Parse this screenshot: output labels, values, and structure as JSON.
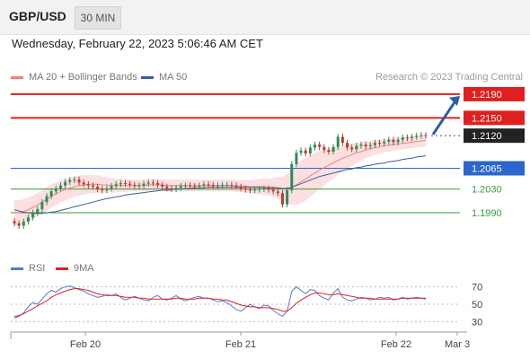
{
  "header": {
    "symbol": "GBP/USD",
    "timeframe": "30 MIN"
  },
  "datetime": "Wednesday, February 22, 2023 5:06:46 AM CET",
  "legend_main": [
    {
      "label": "MA 20 + Bollinger Bands",
      "color": "#f08080"
    },
    {
      "label": "MA 50",
      "color": "#3c5c9c"
    }
  ],
  "credit": "Research © 2023 Trading Central",
  "legend_rsi": [
    {
      "label": "RSI",
      "color": "#5577dd"
    },
    {
      "label": "9MA",
      "color": "#dd2222"
    }
  ],
  "chart_data": {
    "type": "candlestick",
    "price_ylim": [
      1.1925,
      1.2205
    ],
    "levels": [
      {
        "value": 1.219,
        "label": "1.2190",
        "role": "resistance-2",
        "color": "#e02020"
      },
      {
        "value": 1.215,
        "label": "1.2150",
        "role": "resistance-1",
        "color": "#e02020"
      },
      {
        "value": 1.212,
        "label": "1.2120",
        "role": "last-price",
        "color": "#222222"
      },
      {
        "value": 1.2065,
        "label": "1.2065",
        "role": "pivot",
        "color": "#2a66cc"
      },
      {
        "value": 1.203,
        "label": "1.2030",
        "role": "support-1",
        "color": "#3a9a3a"
      },
      {
        "value": 1.199,
        "label": "1.1990",
        "role": "support-2",
        "color": "#3a9a3a"
      }
    ],
    "close_series": [
      1.1972,
      1.1968,
      1.1975,
      1.1982,
      1.199,
      1.1996,
      1.2008,
      1.2018,
      1.2026,
      1.2031,
      1.2036,
      1.2042,
      1.2045,
      1.2046,
      1.2041,
      1.2038,
      1.2036,
      1.2034,
      1.203,
      1.2028,
      1.2031,
      1.2035,
      1.2038,
      1.204,
      1.2039,
      1.2037,
      1.2035,
      1.2036,
      1.2039,
      1.2041,
      1.204,
      1.2037,
      1.2034,
      1.2031,
      1.203,
      1.2032,
      1.2035,
      1.2036,
      1.2035,
      1.2034,
      1.2036,
      1.2038,
      1.2037,
      1.2035,
      1.2036,
      1.2037,
      1.2037,
      1.2036,
      1.2034,
      1.2031,
      1.2029,
      1.2028,
      1.2029,
      1.203,
      1.2031,
      1.2029,
      1.2026,
      1.2023,
      1.2004,
      1.2028,
      1.2072,
      1.2091,
      1.2095,
      1.209,
      1.21,
      1.2105,
      1.2101,
      1.2096,
      1.2093,
      1.2101,
      1.2118,
      1.2108,
      1.21,
      1.2097,
      1.2103,
      1.2105,
      1.2102,
      1.2104,
      1.2108,
      1.2107,
      1.211,
      1.2113,
      1.2109,
      1.2113,
      1.2117,
      1.2116,
      1.2118,
      1.212,
      1.2121,
      1.212
    ],
    "ma20_series": [
      1.199,
      1.199,
      1.1992,
      1.1995,
      1.1999,
      1.2003,
      1.2008,
      1.2013,
      1.2018,
      1.2022,
      1.2026,
      1.2029,
      1.2032,
      1.2034,
      1.2036,
      1.2037,
      1.2038,
      1.2038,
      1.2038,
      1.2037,
      1.2037,
      1.2036,
      1.2036,
      1.2036,
      1.2036,
      1.2036,
      1.2036,
      1.2036,
      1.2036,
      1.2037,
      1.2037,
      1.2037,
      1.2037,
      1.2036,
      1.2036,
      1.2036,
      1.2036,
      1.2036,
      1.2036,
      1.2036,
      1.2036,
      1.2036,
      1.2036,
      1.2036,
      1.2036,
      1.2036,
      1.2036,
      1.2036,
      1.2035,
      1.2035,
      1.2035,
      1.2034,
      1.2034,
      1.2034,
      1.2034,
      1.2033,
      1.2033,
      1.2032,
      1.2031,
      1.2031,
      1.2033,
      1.2037,
      1.2042,
      1.2047,
      1.2052,
      1.2057,
      1.2062,
      1.2066,
      1.207,
      1.2074,
      1.2078,
      1.2082,
      1.2085,
      1.2088,
      1.2091,
      1.2093,
      1.2096,
      1.2098,
      1.21,
      1.2101,
      1.2103,
      1.2104,
      1.2105,
      1.2106,
      1.2107,
      1.2108,
      1.2109,
      1.211,
      1.2111,
      1.2112
    ],
    "ma50_series": [
      1.1995,
      1.1993,
      1.1991,
      1.199,
      1.1989,
      1.1989,
      1.1989,
      1.199,
      1.1991,
      1.1992,
      1.1994,
      1.1996,
      1.1998,
      1.2,
      1.2002,
      1.2004,
      1.2006,
      1.2008,
      1.201,
      1.2012,
      1.2014,
      1.2015,
      1.2017,
      1.2018,
      1.202,
      1.2021,
      1.2022,
      1.2023,
      1.2024,
      1.2025,
      1.2026,
      1.2027,
      1.2028,
      1.2028,
      1.2029,
      1.203,
      1.203,
      1.2031,
      1.2031,
      1.2032,
      1.2032,
      1.2032,
      1.2033,
      1.2033,
      1.2033,
      1.2033,
      1.2033,
      1.2033,
      1.2033,
      1.2033,
      1.2033,
      1.2033,
      1.2033,
      1.2033,
      1.2032,
      1.2032,
      1.2032,
      1.2032,
      1.2031,
      1.2031,
      1.2033,
      1.2036,
      1.2039,
      1.2042,
      1.2045,
      1.2048,
      1.2051,
      1.2053,
      1.2055,
      1.2057,
      1.2059,
      1.2061,
      1.2063,
      1.2064,
      1.2066,
      1.2067,
      1.2069,
      1.207,
      1.2072,
      1.2073,
      1.2074,
      1.2076,
      1.2077,
      1.2078,
      1.208,
      1.2081,
      1.2082,
      1.2084,
      1.2085,
      1.2086
    ],
    "bb_width": [
      22,
      21,
      21,
      20,
      20,
      20,
      20,
      20,
      20,
      19,
      19,
      18,
      18,
      17,
      17,
      16,
      16,
      15,
      15,
      14,
      13,
      12,
      12,
      11,
      11,
      10,
      10,
      10,
      10,
      10,
      10,
      10,
      10,
      10,
      10,
      10,
      10,
      10,
      10,
      10,
      10,
      10,
      10,
      10,
      10,
      10,
      10,
      10,
      10,
      10,
      11,
      11,
      12,
      13,
      14,
      14,
      16,
      18,
      20,
      24,
      30,
      34,
      36,
      36,
      35,
      34,
      32,
      30,
      28,
      26,
      24,
      22,
      20,
      19,
      17,
      16,
      14,
      13,
      12,
      12,
      11,
      11,
      10,
      10,
      10,
      10,
      10,
      10,
      10,
      10
    ],
    "forecast_arrow": {
      "from": 1.2122,
      "to": 1.219
    },
    "rsi": {
      "ylim": [
        20,
        80
      ],
      "ticks": [
        "70",
        "50",
        "30"
      ],
      "rsi_series": [
        34,
        36,
        40,
        47,
        52,
        50,
        56,
        62,
        66,
        64,
        68,
        70,
        71,
        69,
        67,
        65,
        62,
        60,
        58,
        59,
        61,
        60,
        62,
        58,
        55,
        57,
        59,
        57,
        55,
        54,
        58,
        60,
        56,
        55,
        57,
        60,
        56,
        54,
        56,
        58,
        59,
        57,
        57,
        55,
        53,
        54,
        52,
        48,
        44,
        42,
        46,
        50,
        47,
        45,
        49,
        48,
        43,
        39,
        36,
        42,
        65,
        70,
        66,
        62,
        67,
        66,
        60,
        57,
        55,
        63,
        68,
        58,
        55,
        54,
        56,
        58,
        57,
        55,
        56,
        58,
        57,
        58,
        55,
        56,
        58,
        56,
        57,
        58,
        57,
        56
      ],
      "ma9_series": [
        36,
        37,
        39,
        42,
        45,
        48,
        51,
        54,
        58,
        61,
        63,
        65,
        67,
        68,
        68,
        67,
        66,
        64,
        62,
        61,
        60,
        60,
        60,
        59,
        58,
        58,
        58,
        57,
        57,
        56,
        56,
        56,
        56,
        56,
        56,
        57,
        57,
        56,
        56,
        56,
        57,
        57,
        57,
        56,
        56,
        55,
        55,
        53,
        51,
        49,
        48,
        47,
        47,
        46,
        46,
        46,
        45,
        44,
        42,
        42,
        46,
        51,
        55,
        58,
        61,
        63,
        63,
        62,
        61,
        61,
        62,
        61,
        60,
        59,
        58,
        57,
        57,
        57,
        56,
        56,
        56,
        56,
        56,
        56,
        57,
        57,
        57,
        57,
        57,
        57
      ]
    },
    "x_ticks": [
      "Feb 20",
      "Feb 21",
      "Feb 22",
      "Mar 3"
    ]
  }
}
